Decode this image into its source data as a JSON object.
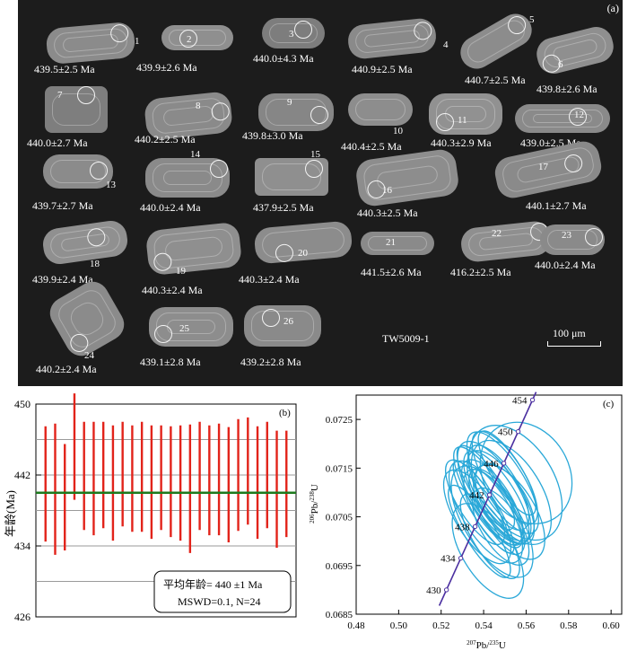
{
  "panel_a": {
    "tag": "(a)",
    "sample_id": "TW5009-1",
    "scale_bar": "100 μm",
    "grains": [
      {
        "n": "1",
        "age": "439.5±2.5 Ma"
      },
      {
        "n": "2",
        "age": "439.9±2.6 Ma"
      },
      {
        "n": "3",
        "age": "440.0±4.3 Ma"
      },
      {
        "n": "4",
        "age": "440.9±2.5 Ma"
      },
      {
        "n": "5",
        "age": "440.7±2.5 Ma"
      },
      {
        "n": "6",
        "age": "439.8±2.6 Ma"
      },
      {
        "n": "7",
        "age": "440.0±2.7 Ma"
      },
      {
        "n": "8",
        "age": "440.2±2.5 Ma"
      },
      {
        "n": "9",
        "age": "439.8±3.0 Ma"
      },
      {
        "n": "10",
        "age": "440.4±2.5 Ma"
      },
      {
        "n": "11",
        "age": "440.3±2.9 Ma"
      },
      {
        "n": "12",
        "age": "439.0±2.5 Ma"
      },
      {
        "n": "13",
        "age": "439.7±2.7 Ma"
      },
      {
        "n": "14",
        "age": "440.0±2.4 Ma"
      },
      {
        "n": "15",
        "age": "437.9±2.5 Ma"
      },
      {
        "n": "16",
        "age": "440.3±2.5 Ma"
      },
      {
        "n": "17",
        "age": "440.1±2.7 Ma"
      },
      {
        "n": "18",
        "age": "439.9±2.4 Ma"
      },
      {
        "n": "19",
        "age": "440.3±2.4 Ma"
      },
      {
        "n": "20",
        "age": "440.3±2.4 Ma"
      },
      {
        "n": "21",
        "age": "441.5±2.6 Ma"
      },
      {
        "n": "22",
        "age": "416.2±2.5 Ma"
      },
      {
        "n": "23",
        "age": "440.0±2.4 Ma"
      },
      {
        "n": "24",
        "age": "440.2±2.4 Ma"
      },
      {
        "n": "25",
        "age": "439.1±2.8 Ma"
      },
      {
        "n": "26",
        "age": "439.2±2.8 Ma"
      }
    ]
  },
  "chart_data": [
    {
      "type": "bar",
      "tag": "(b)",
      "ylabel": "年龄(Ma)",
      "ylim": [
        426,
        450
      ],
      "yticks": [
        "426",
        "434",
        "442",
        "450"
      ],
      "mean_line": 440,
      "bars": [
        [
          434.5,
          447.5
        ],
        [
          433.0,
          447.8
        ],
        [
          433.5,
          445.5
        ],
        [
          439.2,
          451.2
        ],
        [
          435.8,
          448.0
        ],
        [
          435.2,
          448.0
        ],
        [
          436.0,
          448.0
        ],
        [
          434.6,
          447.6
        ],
        [
          436.2,
          448.0
        ],
        [
          435.6,
          447.6
        ],
        [
          435.6,
          448.0
        ],
        [
          434.8,
          447.6
        ],
        [
          435.8,
          447.6
        ],
        [
          435.0,
          447.5
        ],
        [
          434.6,
          447.6
        ],
        [
          433.2,
          447.7
        ],
        [
          435.8,
          448.0
        ],
        [
          435.2,
          447.6
        ],
        [
          435.2,
          447.8
        ],
        [
          434.4,
          447.4
        ],
        [
          435.7,
          448.3
        ],
        [
          436.4,
          448.5
        ],
        [
          434.8,
          447.5
        ],
        [
          436.0,
          448.0
        ],
        [
          433.8,
          447.0
        ],
        [
          435.0,
          447.0
        ]
      ],
      "legend_line1": "平均年龄= 440 ±1 Ma",
      "legend_line2": "MSWD=0.1, N=24"
    },
    {
      "type": "scatter",
      "tag": "(c)",
      "xlabel": "207Pb/235U",
      "ylabel": "206Pb/238U",
      "xlim": [
        0.48,
        0.605
      ],
      "ylim": [
        0.0685,
        0.073
      ],
      "xticks": [
        "0.48",
        "0.50",
        "0.52",
        "0.54",
        "0.56",
        "0.58",
        "0.60"
      ],
      "yticks": [
        "0.0685",
        "0.0695",
        "0.0705",
        "0.0715",
        "0.0725"
      ],
      "concordia_labels": [
        "430",
        "434",
        "438",
        "442",
        "446",
        "450",
        "454"
      ],
      "ellipses": [
        {
          "cx": 0.545,
          "cy": 0.0706,
          "rx": 0.009,
          "ry": 0.001
        },
        {
          "cx": 0.541,
          "cy": 0.0706,
          "rx": 0.011,
          "ry": 0.0012
        },
        {
          "cx": 0.546,
          "cy": 0.0707,
          "rx": 0.008,
          "ry": 0.0009
        },
        {
          "cx": 0.548,
          "cy": 0.0709,
          "rx": 0.01,
          "ry": 0.0011
        },
        {
          "cx": 0.544,
          "cy": 0.0708,
          "rx": 0.009,
          "ry": 0.001
        },
        {
          "cx": 0.553,
          "cy": 0.071,
          "rx": 0.014,
          "ry": 0.0012
        },
        {
          "cx": 0.537,
          "cy": 0.0705,
          "rx": 0.01,
          "ry": 0.0011
        },
        {
          "cx": 0.55,
          "cy": 0.0708,
          "rx": 0.01,
          "ry": 0.0009
        },
        {
          "cx": 0.542,
          "cy": 0.0709,
          "rx": 0.008,
          "ry": 0.0012
        },
        {
          "cx": 0.547,
          "cy": 0.0711,
          "rx": 0.009,
          "ry": 0.001
        },
        {
          "cx": 0.555,
          "cy": 0.0712,
          "rx": 0.018,
          "ry": 0.0013
        },
        {
          "cx": 0.548,
          "cy": 0.0703,
          "rx": 0.009,
          "ry": 0.0009
        },
        {
          "cx": 0.54,
          "cy": 0.0707,
          "rx": 0.006,
          "ry": 0.0011
        },
        {
          "cx": 0.551,
          "cy": 0.0714,
          "rx": 0.007,
          "ry": 0.001
        },
        {
          "cx": 0.538,
          "cy": 0.0702,
          "rx": 0.007,
          "ry": 0.0011
        },
        {
          "cx": 0.545,
          "cy": 0.071,
          "rx": 0.011,
          "ry": 0.0012
        },
        {
          "cx": 0.543,
          "cy": 0.0701,
          "rx": 0.008,
          "ry": 0.001
        },
        {
          "cx": 0.552,
          "cy": 0.0706,
          "rx": 0.012,
          "ry": 0.0011
        },
        {
          "cx": 0.542,
          "cy": 0.0698,
          "rx": 0.012,
          "ry": 0.0011
        },
        {
          "cx": 0.549,
          "cy": 0.0712,
          "rx": 0.01,
          "ry": 0.0012
        },
        {
          "cx": 0.536,
          "cy": 0.0708,
          "rx": 0.008,
          "ry": 0.001
        },
        {
          "cx": 0.546,
          "cy": 0.0709,
          "rx": 0.009,
          "ry": 0.0011
        },
        {
          "cx": 0.541,
          "cy": 0.0711,
          "rx": 0.007,
          "ry": 0.001
        },
        {
          "cx": 0.55,
          "cy": 0.0713,
          "rx": 0.009,
          "ry": 0.0011
        },
        {
          "cx": 0.56,
          "cy": 0.0714,
          "rx": 0.02,
          "ry": 0.0011
        },
        {
          "cx": 0.544,
          "cy": 0.0704,
          "rx": 0.013,
          "ry": 0.0013
        }
      ]
    }
  ],
  "colors": {
    "bar": "#e2231a",
    "mean": "#1d7a1d",
    "ellipse": "#2aa8d8",
    "concordia": "#4b2fa0"
  }
}
